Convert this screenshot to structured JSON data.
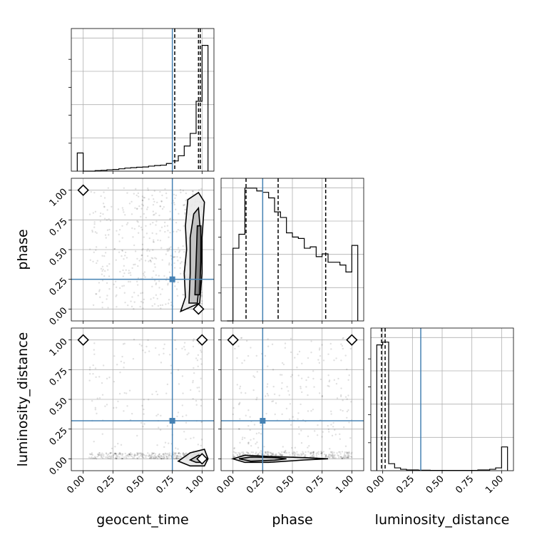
{
  "chart_data": {
    "type": "corner",
    "parameters": [
      "geocent_time",
      "phase",
      "luminosity_distance"
    ],
    "axis_labels": [
      "geocent_time",
      "phase",
      "luminosity_distance"
    ],
    "ranges": [
      [
        -0.1,
        1.1
      ],
      [
        -0.1,
        1.1
      ],
      [
        -0.1,
        1.1
      ]
    ],
    "ticks": [
      0.0,
      0.25,
      0.5,
      0.75,
      1.0
    ],
    "tick_labels": [
      "0.00",
      "0.25",
      "0.50",
      "0.75",
      "1.00"
    ],
    "grid": true,
    "truth_color": "#4682b4",
    "truths": {
      "geocent_time": 0.75,
      "phase": 0.25,
      "luminosity_distance": 0.32
    },
    "quantiles": {
      "geocent_time": [
        0.77,
        0.97,
        0.985
      ],
      "phase": [
        0.11,
        0.38,
        0.78
      ],
      "luminosity_distance": [
        -0.01,
        0.02
      ]
    },
    "histograms": {
      "geocent_time": {
        "bin_edges": [
          -0.05,
          0.0,
          0.05,
          0.1,
          0.15,
          0.2,
          0.25,
          0.3,
          0.35,
          0.4,
          0.45,
          0.5,
          0.55,
          0.6,
          0.65,
          0.7,
          0.75,
          0.8,
          0.85,
          0.9,
          0.95,
          1.0,
          1.05
        ],
        "counts": [
          0.13,
          0.0,
          0.0,
          0.004,
          0.006,
          0.01,
          0.012,
          0.017,
          0.022,
          0.025,
          0.028,
          0.03,
          0.036,
          0.04,
          0.043,
          0.055,
          0.073,
          0.11,
          0.18,
          0.27,
          0.5,
          0.9
        ]
      },
      "phase": {
        "bin_edges": [
          -0.05,
          0.0,
          0.05,
          0.1,
          0.15,
          0.2,
          0.25,
          0.3,
          0.35,
          0.4,
          0.45,
          0.5,
          0.55,
          0.6,
          0.65,
          0.7,
          0.75,
          0.8,
          0.85,
          0.9,
          0.95,
          1.0,
          1.05
        ],
        "counts": [
          0.0,
          0.52,
          0.62,
          0.95,
          0.95,
          0.93,
          0.92,
          0.88,
          0.78,
          0.74,
          0.63,
          0.6,
          0.59,
          0.52,
          0.53,
          0.46,
          0.48,
          0.42,
          0.42,
          0.4,
          0.35,
          0.54
        ]
      },
      "luminosity_distance": {
        "bin_edges": [
          -0.05,
          0.0,
          0.05,
          0.1,
          0.15,
          0.2,
          0.25,
          0.3,
          0.35,
          0.4,
          0.45,
          0.5,
          0.55,
          0.6,
          0.65,
          0.7,
          0.75,
          0.8,
          0.85,
          0.9,
          0.95,
          1.0,
          1.05
        ],
        "counts": [
          0.9,
          0.92,
          0.05,
          0.02,
          0.01,
          0.005,
          0.005,
          0.003,
          0.003,
          0.002,
          0.002,
          0.002,
          0.002,
          0.002,
          0.002,
          0.002,
          0.002,
          0.005,
          0.005,
          0.01,
          0.02,
          0.17
        ]
      }
    },
    "pairs": [
      {
        "x": "geocent_time",
        "y": "phase",
        "truth_point": [
          0.75,
          0.25
        ],
        "modes": [
          [
            0.0,
            1.0
          ],
          [
            0.97,
            0.0
          ]
        ],
        "contours": [
          [
            [
              0.82,
              -0.02
            ],
            [
              0.86,
              0.1
            ],
            [
              0.85,
              0.3
            ],
            [
              0.87,
              0.5
            ],
            [
              0.86,
              0.7
            ],
            [
              0.88,
              0.92
            ],
            [
              0.97,
              0.98
            ],
            [
              1.02,
              0.9
            ],
            [
              1.0,
              0.6
            ],
            [
              1.0,
              0.3
            ],
            [
              0.98,
              0.05
            ]
          ],
          [
            [
              0.89,
              0.05
            ],
            [
              0.9,
              0.3
            ],
            [
              0.9,
              0.6
            ],
            [
              0.93,
              0.8
            ],
            [
              0.97,
              0.85
            ],
            [
              0.99,
              0.6
            ],
            [
              0.98,
              0.25
            ],
            [
              0.96,
              0.05
            ]
          ],
          [
            [
              0.94,
              0.12
            ],
            [
              0.95,
              0.4
            ],
            [
              0.96,
              0.7
            ],
            [
              0.99,
              0.7
            ],
            [
              0.99,
              0.4
            ],
            [
              0.98,
              0.12
            ]
          ]
        ]
      },
      {
        "x": "geocent_time",
        "y": "luminosity_distance",
        "truth_point": [
          0.75,
          0.32
        ],
        "modes": [
          [
            0.0,
            1.0
          ],
          [
            1.0,
            1.0
          ],
          [
            1.0,
            0.0
          ]
        ],
        "contours": [
          [
            [
              0.8,
              -0.02
            ],
            [
              0.9,
              0.05
            ],
            [
              1.02,
              0.08
            ],
            [
              1.05,
              0.0
            ],
            [
              1.02,
              -0.06
            ],
            [
              0.9,
              -0.06
            ]
          ],
          [
            [
              0.9,
              -0.01
            ],
            [
              0.97,
              0.03
            ],
            [
              1.02,
              0.02
            ],
            [
              1.01,
              -0.03
            ],
            [
              0.95,
              -0.03
            ]
          ]
        ]
      },
      {
        "x": "phase",
        "y": "luminosity_distance",
        "truth_point": [
          0.25,
          0.32
        ],
        "modes": [
          [
            0.0,
            1.0
          ],
          [
            1.0,
            1.0
          ]
        ],
        "contours": [
          [
            [
              0.0,
              0.0
            ],
            [
              0.1,
              0.03
            ],
            [
              0.3,
              0.02
            ],
            [
              0.6,
              0.01
            ],
            [
              0.8,
              0.0
            ],
            [
              0.6,
              -0.01
            ],
            [
              0.3,
              -0.03
            ],
            [
              0.1,
              -0.03
            ]
          ],
          [
            [
              0.05,
              0.0
            ],
            [
              0.15,
              0.015
            ],
            [
              0.35,
              0.01
            ],
            [
              0.45,
              0.0
            ],
            [
              0.35,
              -0.012
            ],
            [
              0.15,
              -0.02
            ]
          ]
        ]
      }
    ]
  }
}
